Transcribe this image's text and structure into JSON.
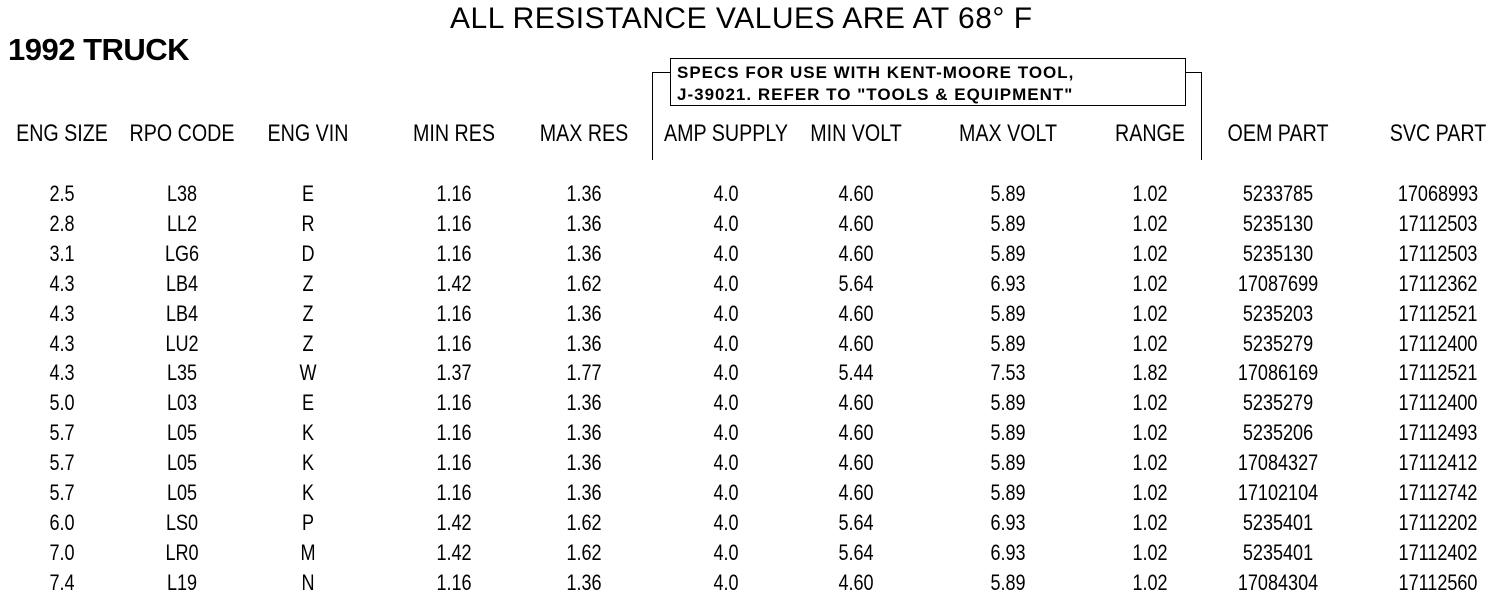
{
  "title": "ALL RESISTANCE VALUES ARE AT 68° F",
  "vehicle": "1992 TRUCK",
  "note": {
    "line1": "SPECS FOR USE WITH KENT-MOORE TOOL,",
    "line2": "J-39021. REFER TO \"TOOLS & EQUIPMENT\""
  },
  "columns": [
    "ENG SIZE",
    "RPO CODE",
    "ENG VIN",
    "MIN RES",
    "MAX RES",
    "AMP SUPPLY",
    "MIN VOLT",
    "MAX VOLT",
    "RANGE",
    "OEM PART",
    "SVC PART"
  ],
  "rows": [
    [
      "2.5",
      "L38",
      "E",
      "1.16",
      "1.36",
      "4.0",
      "4.60",
      "5.89",
      "1.02",
      "5233785",
      "17068993"
    ],
    [
      "2.8",
      "LL2",
      "R",
      "1.16",
      "1.36",
      "4.0",
      "4.60",
      "5.89",
      "1.02",
      "5235130",
      "17112503"
    ],
    [
      "3.1",
      "LG6",
      "D",
      "1.16",
      "1.36",
      "4.0",
      "4.60",
      "5.89",
      "1.02",
      "5235130",
      "17112503"
    ],
    [
      "4.3",
      "LB4",
      "Z",
      "1.42",
      "1.62",
      "4.0",
      "5.64",
      "6.93",
      "1.02",
      "17087699",
      "17112362"
    ],
    [
      "4.3",
      "LB4",
      "Z",
      "1.16",
      "1.36",
      "4.0",
      "4.60",
      "5.89",
      "1.02",
      "5235203",
      "17112521"
    ],
    [
      "4.3",
      "LU2",
      "Z",
      "1.16",
      "1.36",
      "4.0",
      "4.60",
      "5.89",
      "1.02",
      "5235279",
      "17112400"
    ],
    [
      "4.3",
      "L35",
      "W",
      "1.37",
      "1.77",
      "4.0",
      "5.44",
      "7.53",
      "1.82",
      "17086169",
      "17112521"
    ],
    [
      "5.0",
      "L03",
      "E",
      "1.16",
      "1.36",
      "4.0",
      "4.60",
      "5.89",
      "1.02",
      "5235279",
      "17112400"
    ],
    [
      "5.7",
      "L05",
      "K",
      "1.16",
      "1.36",
      "4.0",
      "4.60",
      "5.89",
      "1.02",
      "5235206",
      "17112493"
    ],
    [
      "5.7",
      "L05",
      "K",
      "1.16",
      "1.36",
      "4.0",
      "4.60",
      "5.89",
      "1.02",
      "17084327",
      "17112412"
    ],
    [
      "5.7",
      "L05",
      "K",
      "1.16",
      "1.36",
      "4.0",
      "4.60",
      "5.89",
      "1.02",
      "17102104",
      "17112742"
    ],
    [
      "6.0",
      "LS0",
      "P",
      "1.42",
      "1.62",
      "4.0",
      "5.64",
      "6.93",
      "1.02",
      "5235401",
      "17112202"
    ],
    [
      "7.0",
      "LR0",
      "M",
      "1.42",
      "1.62",
      "4.0",
      "5.64",
      "6.93",
      "1.02",
      "5235401",
      "17112402"
    ],
    [
      "7.4",
      "L19",
      "N",
      "1.16",
      "1.36",
      "4.0",
      "4.60",
      "5.89",
      "1.02",
      "17084304",
      "17112560"
    ]
  ]
}
